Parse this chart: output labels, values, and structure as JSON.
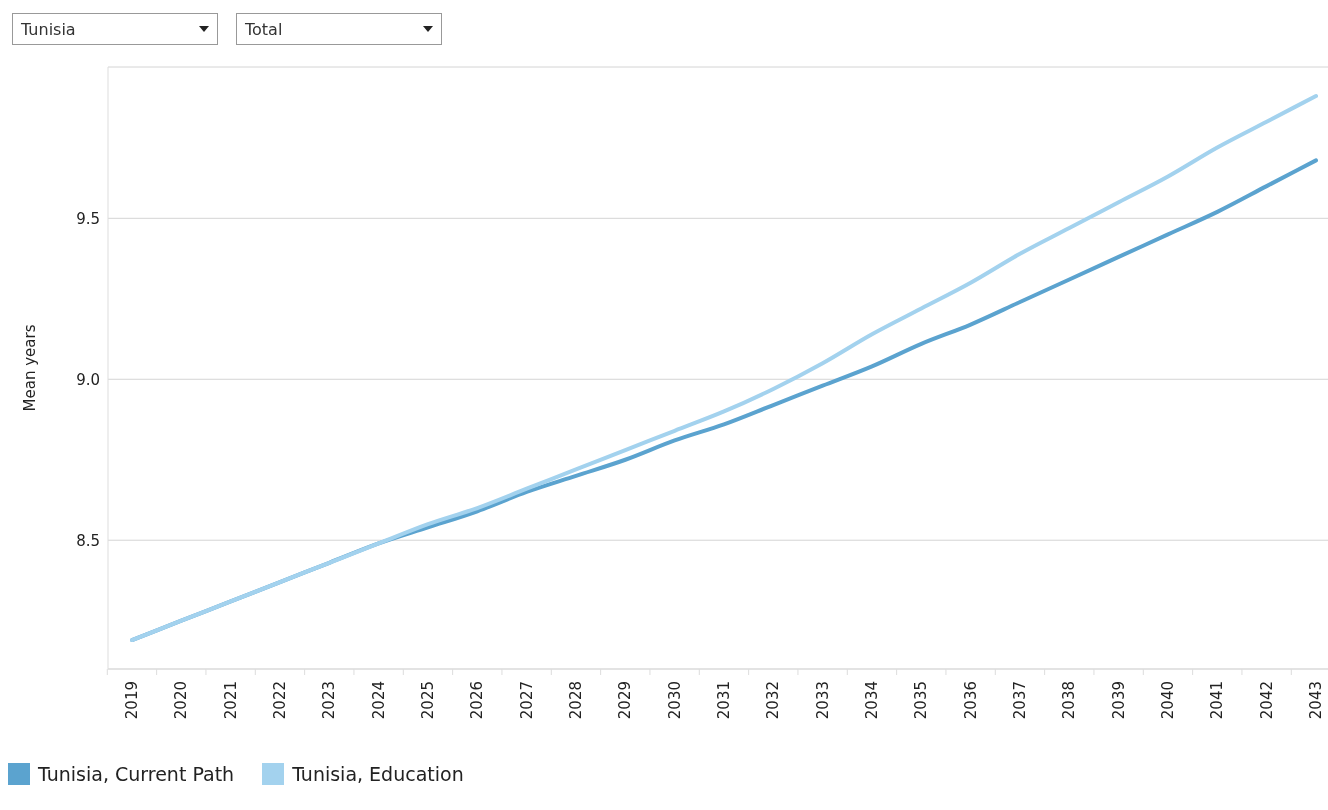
{
  "chart_data": {
    "type": "line",
    "ylabel": "Mean years",
    "categories": [
      "2019",
      "2020",
      "2021",
      "2022",
      "2023",
      "2024",
      "2025",
      "2026",
      "2027",
      "2028",
      "2029",
      "2030",
      "2031",
      "2032",
      "2033",
      "2034",
      "2035",
      "2036",
      "2037",
      "2038",
      "2039",
      "2040",
      "2041",
      "2042",
      "2043"
    ],
    "series": [
      {
        "name": "Tunisia, Current Path",
        "color": "#5ba3cf",
        "values": [
          8.19,
          8.25,
          8.31,
          8.37,
          8.43,
          8.49,
          8.54,
          8.59,
          8.65,
          8.7,
          8.75,
          8.81,
          8.86,
          8.92,
          8.98,
          9.04,
          9.11,
          9.17,
          9.24,
          9.31,
          9.38,
          9.45,
          9.52,
          9.6,
          9.68
        ]
      },
      {
        "name": "Tunisia, Education",
        "color": "#a3d2ee",
        "values": [
          8.19,
          8.25,
          8.31,
          8.37,
          8.43,
          8.49,
          8.55,
          8.6,
          8.66,
          8.72,
          8.78,
          8.84,
          8.9,
          8.97,
          9.05,
          9.14,
          9.22,
          9.3,
          9.39,
          9.47,
          9.55,
          9.63,
          9.72,
          9.8,
          9.88
        ]
      }
    ],
    "ylim": [
      8.1,
      9.97
    ],
    "yticks": [
      {
        "value": 8.5,
        "label": "8.5"
      },
      {
        "value": 9.0,
        "label": "9.0"
      },
      {
        "value": 9.5,
        "label": "9.5"
      }
    ],
    "grid": "y",
    "legend": "bottom",
    "marker": "none",
    "line_style": "solid",
    "annotations": [
      "Tunisia",
      "Total"
    ]
  }
}
